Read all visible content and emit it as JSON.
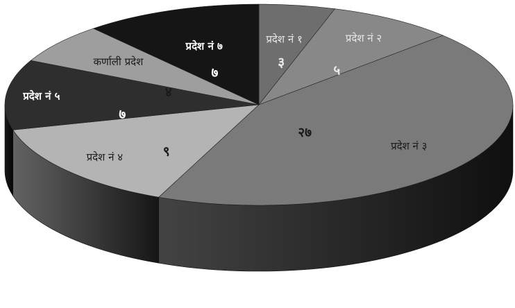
{
  "chart_data": {
    "type": "pie",
    "style": "3d",
    "categories": [
      "प्रदेश नं १",
      "प्रदेश नं २",
      "प्रदेश नं ३",
      "प्रदेश नं ४",
      "प्रदेश नं ५",
      "कर्णाली प्रदेश",
      "प्रदेश नं ७"
    ],
    "value_labels": [
      "३",
      "५",
      "२७",
      "९",
      "७",
      "४",
      "७"
    ],
    "values": [
      3,
      5,
      27,
      9,
      7,
      4,
      7
    ],
    "colors": [
      "#6e6e6e",
      "#888888",
      "#7a7a7a",
      "#b4b4b4",
      "#2e2e2e",
      "#9e9e9e",
      "#151515"
    ],
    "label_colors": [
      "#e8e8e8",
      "#e8e8e8",
      "#1a1a1a",
      "#1a1a1a",
      "#ffffff",
      "#1a1a1a",
      "#ffffff"
    ],
    "title": "",
    "legend": "none"
  }
}
